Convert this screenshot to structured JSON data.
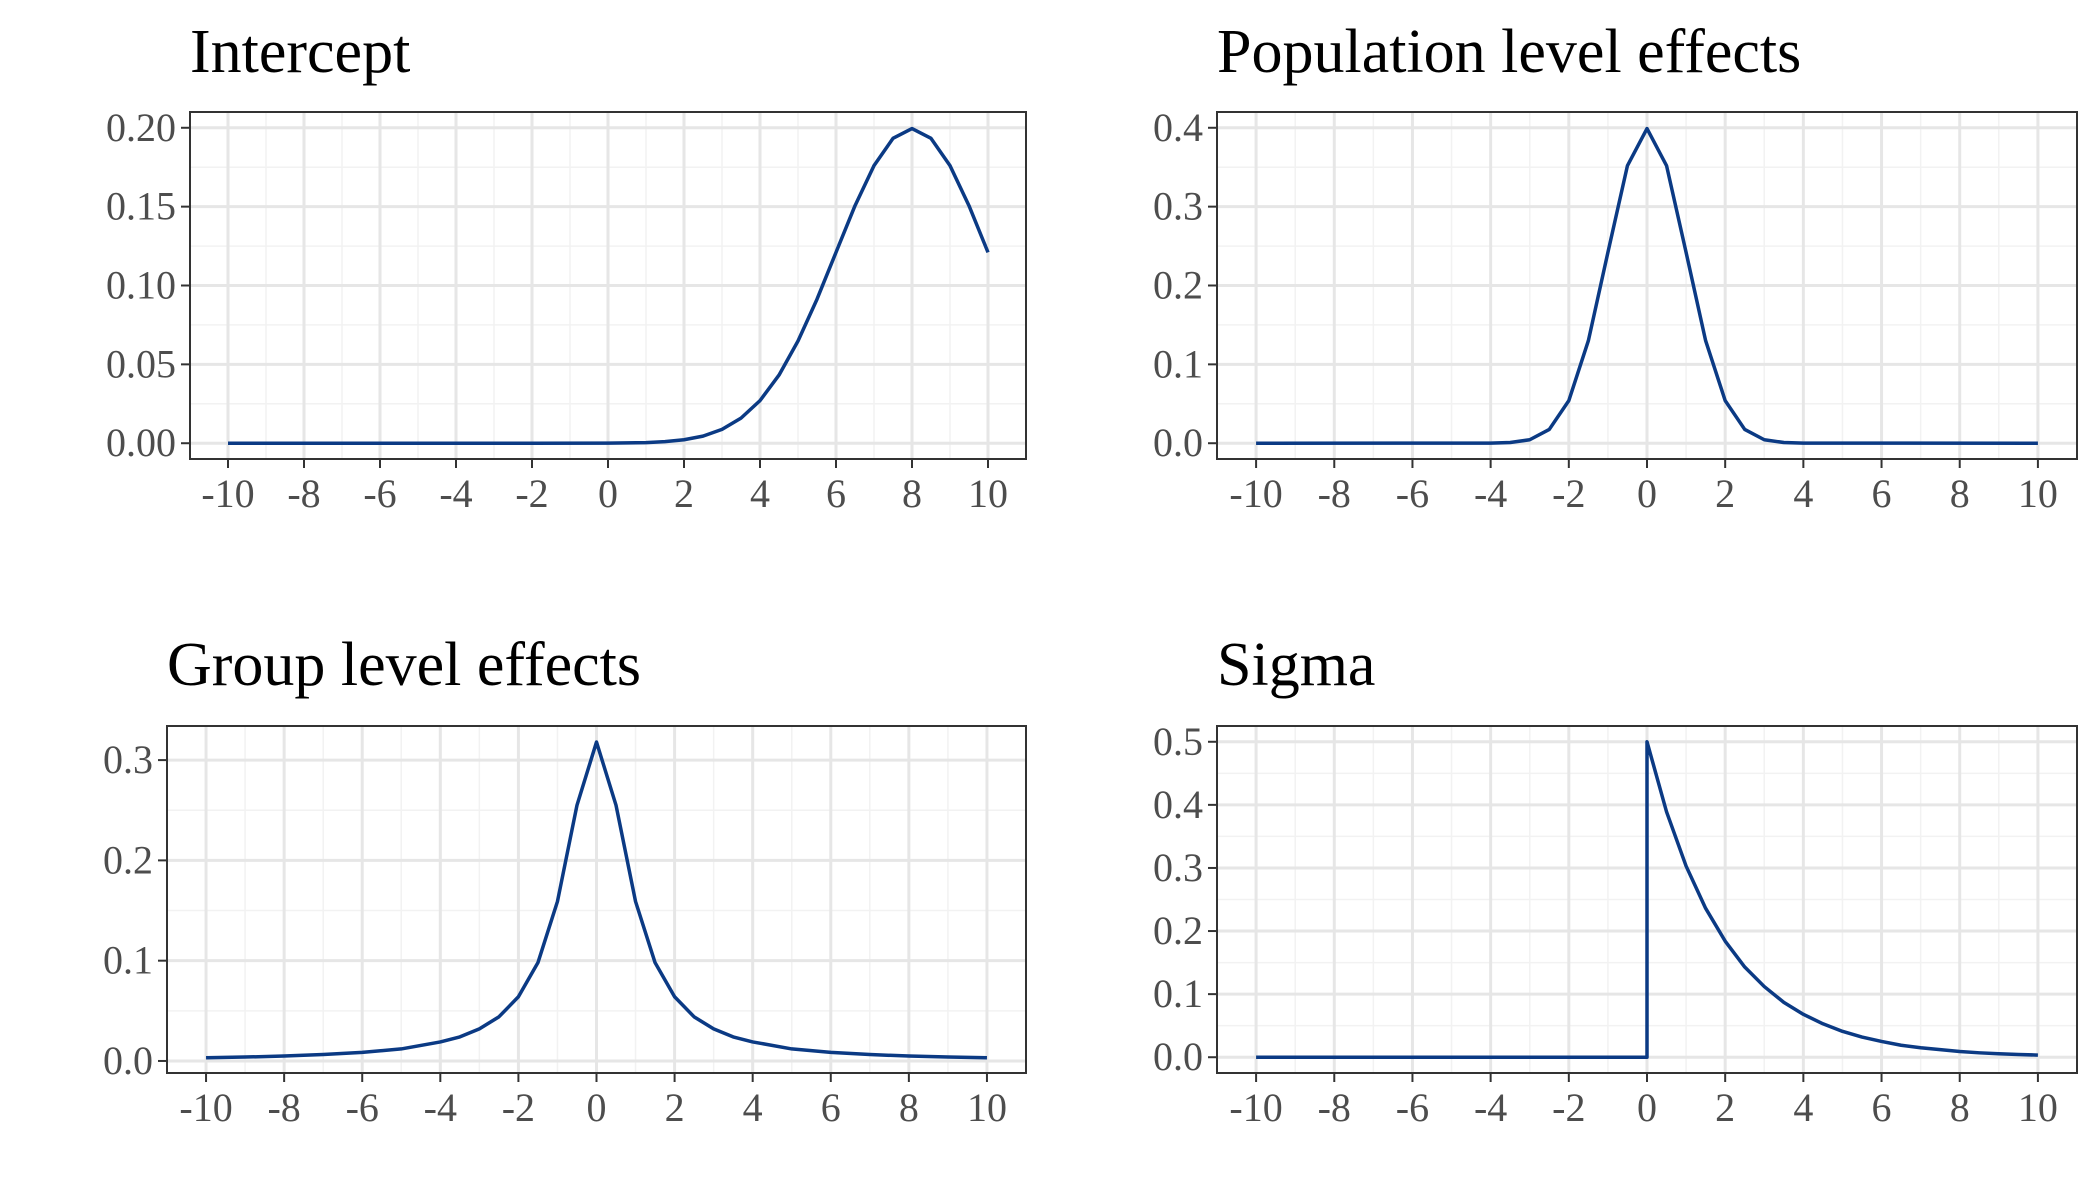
{
  "chart_data": [
    {
      "type": "line",
      "title": "Intercept",
      "color": "#0b3a84",
      "x": [
        -10,
        -2,
        0,
        0.5,
        1,
        1.5,
        2,
        2.5,
        3,
        3.5,
        4,
        4.5,
        5,
        5.5,
        6,
        6.5,
        7,
        7.5,
        8,
        8.5,
        9,
        9.5,
        10
      ],
      "values": [
        0,
        0,
        0.0001,
        0.0002,
        0.0004,
        0.001,
        0.0022,
        0.0045,
        0.0088,
        0.0159,
        0.027,
        0.0432,
        0.0648,
        0.0913,
        0.121,
        0.1506,
        0.176,
        0.1933,
        0.1995,
        0.1933,
        0.176,
        0.1506,
        0.121
      ],
      "xlim": [
        -11,
        11
      ],
      "xticks": [
        -10,
        -8,
        -6,
        -4,
        -2,
        0,
        2,
        4,
        6,
        8,
        10
      ],
      "ylim": [
        -0.01,
        0.21
      ],
      "yticks": [
        {
          "value": 0,
          "label": "0.00"
        },
        0.05,
        {
          "value": 0.1,
          "label": "0.10"
        },
        0.15,
        {
          "value": 0.2,
          "label": "0.20"
        }
      ],
      "grid": true
    },
    {
      "type": "line",
      "title": "Population level effects",
      "color": "#0b3a84",
      "x": [
        -10,
        -4,
        -3.5,
        -3,
        -2.5,
        -2,
        -1.5,
        -1,
        -0.5,
        0,
        0.5,
        1,
        1.5,
        2,
        2.5,
        3,
        3.5,
        4,
        10
      ],
      "values": [
        0,
        0.0001,
        0.0009,
        0.0044,
        0.0175,
        0.054,
        0.13,
        0.242,
        0.352,
        0.399,
        0.352,
        0.242,
        0.13,
        0.054,
        0.0175,
        0.0044,
        0.0009,
        0.0001,
        0
      ],
      "xlim": [
        -11,
        11
      ],
      "xticks": [
        -10,
        -8,
        -6,
        -4,
        -2,
        0,
        2,
        4,
        6,
        8,
        10
      ],
      "ylim": [
        -0.02,
        0.42
      ],
      "yticks": [
        {
          "value": 0,
          "label": "0.0"
        },
        0.1,
        0.2,
        0.3,
        0.4
      ],
      "grid": true
    },
    {
      "type": "line",
      "title": "Group level effects",
      "color": "#0b3a84",
      "x": [
        -10,
        -9,
        -8,
        -7,
        -6,
        -5,
        -4,
        -3.5,
        -3,
        -2.5,
        -2,
        -1.5,
        -1,
        -0.5,
        0,
        0.5,
        1,
        1.5,
        2,
        2.5,
        3,
        3.5,
        4,
        5,
        6,
        7,
        8,
        9,
        10
      ],
      "values": [
        0.0032,
        0.0039,
        0.0049,
        0.0064,
        0.0086,
        0.012,
        0.019,
        0.024,
        0.032,
        0.044,
        0.064,
        0.098,
        0.159,
        0.255,
        0.318,
        0.255,
        0.159,
        0.098,
        0.064,
        0.044,
        0.032,
        0.024,
        0.019,
        0.012,
        0.0086,
        0.0064,
        0.0049,
        0.0039,
        0.0032
      ],
      "xlim": [
        -11,
        11
      ],
      "xticks": [
        -10,
        -8,
        -6,
        -4,
        -2,
        0,
        2,
        4,
        6,
        8,
        10
      ],
      "ylim": [
        -0.012,
        0.334
      ],
      "yticks": [
        {
          "value": 0,
          "label": "0.0"
        },
        0.1,
        0.2,
        0.3
      ],
      "grid": true
    },
    {
      "type": "line",
      "title": "Sigma",
      "color": "#0b3a84",
      "x": [
        -10,
        0,
        0,
        0.5,
        1,
        1.5,
        2,
        2.5,
        3,
        3.5,
        4,
        4.5,
        5,
        5.5,
        6,
        6.5,
        7,
        7.5,
        8,
        8.5,
        9,
        9.5,
        10
      ],
      "values": [
        0,
        0,
        0.5,
        0.389,
        0.303,
        0.236,
        0.184,
        0.143,
        0.112,
        0.087,
        0.068,
        0.053,
        0.041,
        0.032,
        0.025,
        0.019,
        0.015,
        0.012,
        0.009,
        0.007,
        0.0056,
        0.0043,
        0.0034
      ],
      "xlim": [
        -11,
        11
      ],
      "xticks": [
        -10,
        -8,
        -6,
        -4,
        -2,
        0,
        2,
        4,
        6,
        8,
        10
      ],
      "ylim": [
        -0.025,
        0.525
      ],
      "yticks": [
        {
          "value": 0,
          "label": "0.0"
        },
        0.1,
        0.2,
        0.3,
        0.4,
        0.5
      ],
      "grid": true
    }
  ]
}
